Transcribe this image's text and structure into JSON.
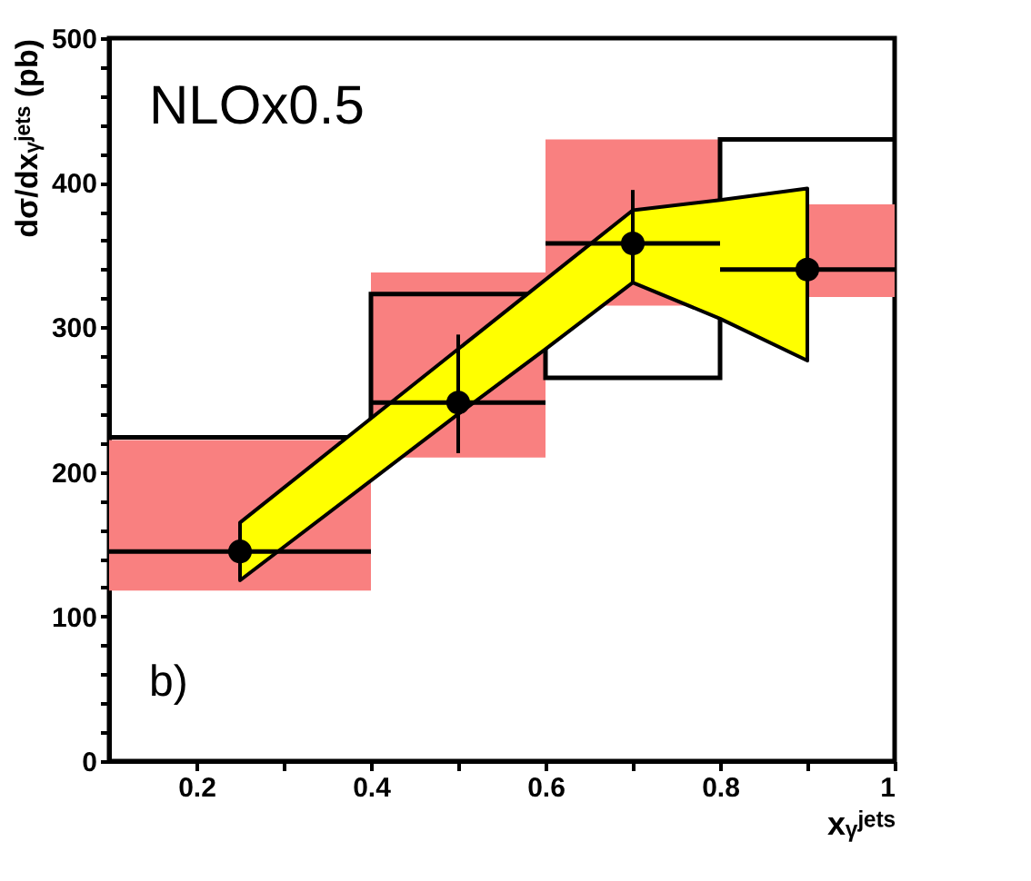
{
  "chart_data": {
    "type": "scatter",
    "xlabel": "xᵧʲᵉᵗˢ",
    "ylabel": "dσ/dxᵧʲᵉᵗˢ (pb)",
    "annotations": [
      "NLOx0.5",
      "b)"
    ],
    "xlim": [
      0.1,
      1.0
    ],
    "ylim": [
      0,
      500
    ],
    "xticks": [
      0.2,
      {
        "value": 0.3,
        "label": null
      },
      0.4,
      {
        "value": 0.5,
        "label": null
      },
      0.6,
      {
        "value": 0.7,
        "label": null
      },
      0.8,
      {
        "value": 0.9,
        "label": null
      },
      {
        "value": 1.0,
        "label": "1"
      }
    ],
    "yticks": [
      0,
      {
        "value": 20,
        "label": null
      },
      {
        "value": 40,
        "label": null
      },
      {
        "value": 60,
        "label": null
      },
      {
        "value": 80,
        "label": null
      },
      100,
      {
        "value": 120,
        "label": null
      },
      {
        "value": 140,
        "label": null
      },
      {
        "value": 160,
        "label": null
      },
      {
        "value": 180,
        "label": null
      },
      200,
      {
        "value": 220,
        "label": null
      },
      {
        "value": 240,
        "label": null
      },
      {
        "value": 260,
        "label": null
      },
      {
        "value": 280,
        "label": null
      },
      300,
      {
        "value": 320,
        "label": null
      },
      {
        "value": 340,
        "label": null
      },
      {
        "value": 360,
        "label": null
      },
      {
        "value": 380,
        "label": null
      },
      400,
      {
        "value": 420,
        "label": null
      },
      {
        "value": 440,
        "label": null
      },
      {
        "value": 460,
        "label": null
      },
      {
        "value": 480,
        "label": null
      },
      500
    ],
    "grid": false,
    "series": [
      {
        "type": "histogram",
        "color": "#f98080",
        "bins": [
          0.1,
          0.4,
          0.6,
          0.8,
          1.0
        ],
        "base": [
          118,
          210,
          315,
          321
        ],
        "values": [
          104,
          128,
          115,
          64
        ]
      },
      {
        "type": "step",
        "color": "#000000",
        "x": [
          0.1,
          0.4,
          0.6,
          0.8,
          1.0
        ],
        "values": [
          224,
          323,
          265,
          430,
          430
        ]
      },
      {
        "type": "area",
        "color": "#ffff00",
        "x": [
          0.25,
          0.5,
          0.6,
          0.7,
          0.8,
          0.9
        ],
        "values": [
          null,
          null,
          null,
          null,
          null,
          null
        ],
        "lower": [
          125,
          240,
          285,
          331,
          306,
          277
        ],
        "upper": [
          165,
          285,
          333,
          381,
          388,
          396
        ]
      },
      {
        "color": "#000000",
        "marker": "circle",
        "x": [
          0.25,
          0.5,
          0.7,
          0.9
        ],
        "values": [
          145,
          248,
          358,
          340
        ],
        "errors": [
          [
            125,
            165
          ],
          [
            213,
            295
          ],
          [
            330,
            395
          ],
          [
            315,
            360
          ]
        ],
        "xerrors": [
          0.15,
          0.1,
          0.1,
          0.1
        ]
      }
    ]
  }
}
